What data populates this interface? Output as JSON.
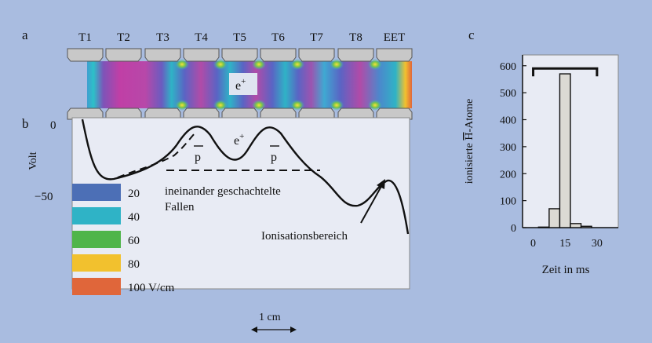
{
  "panels": {
    "a": "a",
    "b": "b",
    "c": "c"
  },
  "electrodes": [
    "T1",
    "T2",
    "T3",
    "T4",
    "T5",
    "T6",
    "T7",
    "T8",
    "EET"
  ],
  "panel_a": {
    "positron_label": "e",
    "positron_sup": "+"
  },
  "panel_b": {
    "y_label": "Volt",
    "y_tick_0": "0",
    "y_tick_m50": "−50",
    "pbar_left": "p",
    "pbar_right": "p",
    "positron_label": "e",
    "positron_sup": "+",
    "nested_traps_line1": "ineinander geschachtelte",
    "nested_traps_line2": "Fallen",
    "ionisation_label": "Ionisationsbereich",
    "scale_label": "1 cm"
  },
  "legend": {
    "items": [
      {
        "label": "20",
        "color": "#4c6fb6"
      },
      {
        "label": "40",
        "color": "#2fb3c6"
      },
      {
        "label": "60",
        "color": "#4fb54a"
      },
      {
        "label": "80",
        "color": "#f2c12e"
      },
      {
        "label": "100 V/cm",
        "color": "#e0663a"
      }
    ]
  },
  "chart_data": {
    "type": "bar",
    "title": "",
    "xlabel": "Zeit in ms",
    "ylabel_prefix": "ionisierte ",
    "ylabel_symbol": "H",
    "ylabel_suffix": "-Atome",
    "xticks": [
      0,
      15,
      30
    ],
    "yticks": [
      0,
      100,
      200,
      300,
      400,
      500,
      600
    ],
    "xlim": [
      -5,
      40
    ],
    "ylim": [
      0,
      640
    ],
    "bins": [
      {
        "x0": 2.5,
        "x1": 7.5,
        "value": 2
      },
      {
        "x0": 7.5,
        "x1": 12.5,
        "value": 70
      },
      {
        "x0": 12.5,
        "x1": 17.5,
        "value": 570
      },
      {
        "x0": 17.5,
        "x1": 22.5,
        "value": 15
      },
      {
        "x0": 22.5,
        "x1": 27.5,
        "value": 5
      }
    ],
    "bracket": {
      "x0": 0,
      "x1": 30,
      "value": 590
    }
  }
}
